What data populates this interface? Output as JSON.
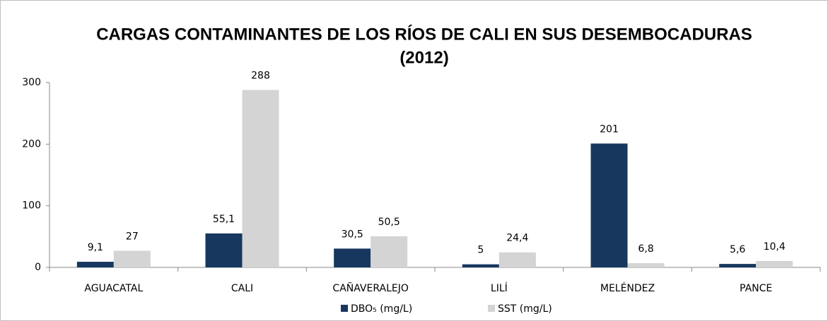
{
  "chart_data": {
    "type": "bar",
    "title": [
      "CARGAS CONTAMINANTES DE LOS RÍOS DE CALI EN SUS DESEMBOCADURAS",
      "(2012)"
    ],
    "categories": [
      "AGUACATAL",
      "CALI",
      "CAÑAVERALEJO",
      "LILÍ",
      "MELÉNDEZ",
      "PANCE"
    ],
    "series": [
      {
        "name": "DBO₅ (mg/L)",
        "color": "#17375e",
        "values": [
          9.1,
          55.1,
          30.5,
          5,
          201,
          5.6
        ],
        "value_labels": [
          "9,1",
          "55,1",
          "30,5",
          "5",
          "201",
          "5,6"
        ]
      },
      {
        "name": "SST (mg/L)",
        "color": "#d4d4d4",
        "values": [
          27,
          288,
          50.5,
          24.4,
          6.8,
          10.4
        ],
        "value_labels": [
          "27",
          "288",
          "50,5",
          "24,4",
          "6,8",
          "10,4"
        ]
      }
    ],
    "ylim": [
      0,
      300
    ],
    "yticks": [
      0,
      100,
      200,
      300
    ],
    "grid": false,
    "legend": "bottom"
  }
}
